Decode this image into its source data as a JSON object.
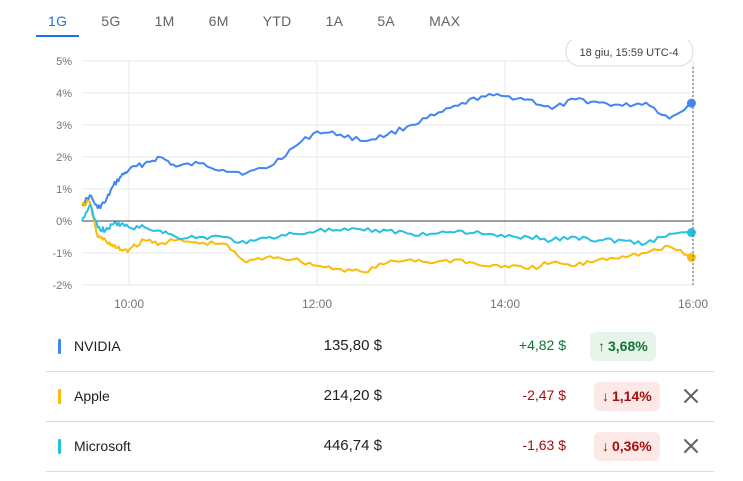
{
  "tabs": [
    "1G",
    "5G",
    "1M",
    "6M",
    "YTD",
    "1A",
    "5A",
    "MAX"
  ],
  "active_tab": "1G",
  "tooltip": "18 giu, 15:59 UTC-4",
  "chart_data": {
    "type": "line",
    "x_tick_labels": [
      "10:00",
      "12:00",
      "14:00",
      "16:00"
    ],
    "y_tick_labels": [
      "5%",
      "4%",
      "3%",
      "2%",
      "1%",
      "0%",
      "-1%",
      "-2%"
    ],
    "ylim": [
      -2,
      5
    ],
    "xlim": [
      "09:30",
      "16:00"
    ],
    "baseline": 0,
    "series": [
      {
        "name": "NVIDIA",
        "color": "#4285f4",
        "x": [
          "09:30",
          "09:35",
          "09:40",
          "09:45",
          "09:50",
          "09:55",
          "10:00",
          "10:10",
          "10:20",
          "10:30",
          "10:45",
          "11:00",
          "11:15",
          "11:30",
          "11:45",
          "12:00",
          "12:15",
          "12:30",
          "12:45",
          "13:00",
          "13:15",
          "13:30",
          "13:45",
          "14:00",
          "14:15",
          "14:30",
          "14:45",
          "15:00",
          "15:15",
          "15:30",
          "15:45",
          "15:59"
        ],
        "y": [
          0.5,
          0.8,
          0.4,
          0.6,
          1.1,
          1.4,
          1.6,
          1.8,
          2.0,
          1.7,
          1.8,
          1.6,
          1.5,
          1.7,
          2.3,
          2.8,
          2.7,
          2.5,
          2.7,
          3.0,
          3.3,
          3.6,
          3.9,
          3.9,
          3.8,
          3.5,
          3.8,
          3.7,
          3.6,
          3.7,
          3.2,
          3.68
        ]
      },
      {
        "name": "Apple",
        "color": "#fbbc04",
        "x": [
          "09:30",
          "09:35",
          "09:40",
          "09:45",
          "09:50",
          "09:55",
          "10:00",
          "10:10",
          "10:20",
          "10:30",
          "10:45",
          "11:00",
          "11:15",
          "11:30",
          "11:45",
          "12:00",
          "12:15",
          "12:30",
          "12:45",
          "13:00",
          "13:15",
          "13:30",
          "13:45",
          "14:00",
          "14:15",
          "14:30",
          "14:45",
          "15:00",
          "15:15",
          "15:30",
          "15:45",
          "15:59"
        ],
        "y": [
          0.5,
          0.6,
          -0.5,
          -0.6,
          -0.8,
          -0.9,
          -0.9,
          -0.6,
          -0.7,
          -0.6,
          -0.7,
          -0.7,
          -1.3,
          -1.1,
          -1.2,
          -1.4,
          -1.5,
          -1.6,
          -1.3,
          -1.2,
          -1.3,
          -1.2,
          -1.4,
          -1.4,
          -1.5,
          -1.3,
          -1.4,
          -1.2,
          -1.1,
          -1.0,
          -0.8,
          -1.14
        ]
      },
      {
        "name": "Microsoft",
        "color": "#24c1e0",
        "x": [
          "09:30",
          "09:35",
          "09:40",
          "09:45",
          "09:50",
          "09:55",
          "10:00",
          "10:10",
          "10:20",
          "10:30",
          "10:45",
          "11:00",
          "11:15",
          "11:30",
          "11:45",
          "12:00",
          "12:15",
          "12:30",
          "12:45",
          "13:00",
          "13:15",
          "13:30",
          "13:45",
          "14:00",
          "14:15",
          "14:30",
          "14:45",
          "15:00",
          "15:15",
          "15:30",
          "15:45",
          "15:59"
        ],
        "y": [
          0.0,
          0.5,
          -0.2,
          -0.3,
          -0.1,
          -0.1,
          -0.2,
          -0.2,
          -0.3,
          -0.5,
          -0.5,
          -0.5,
          -0.7,
          -0.5,
          -0.4,
          -0.3,
          -0.3,
          -0.3,
          -0.3,
          -0.4,
          -0.4,
          -0.3,
          -0.4,
          -0.5,
          -0.5,
          -0.6,
          -0.5,
          -0.6,
          -0.6,
          -0.7,
          -0.4,
          -0.36
        ]
      }
    ]
  },
  "rows": [
    {
      "name": "NVIDIA",
      "color": "#4285f4",
      "price": "135,80 $",
      "change": "+4,82 $",
      "percent": "3,68%",
      "direction": "up",
      "removable": false
    },
    {
      "name": "Apple",
      "color": "#fbbc04",
      "price": "214,20 $",
      "change": "-2,47 $",
      "percent": "1,14%",
      "direction": "down",
      "removable": true
    },
    {
      "name": "Microsoft",
      "color": "#24c1e0",
      "price": "446,74 $",
      "change": "-1,63 $",
      "percent": "0,36%",
      "direction": "down",
      "removable": true
    }
  ],
  "icons": {
    "up": "arrow-up-icon",
    "down": "arrow-down-icon",
    "close": "close-icon"
  }
}
